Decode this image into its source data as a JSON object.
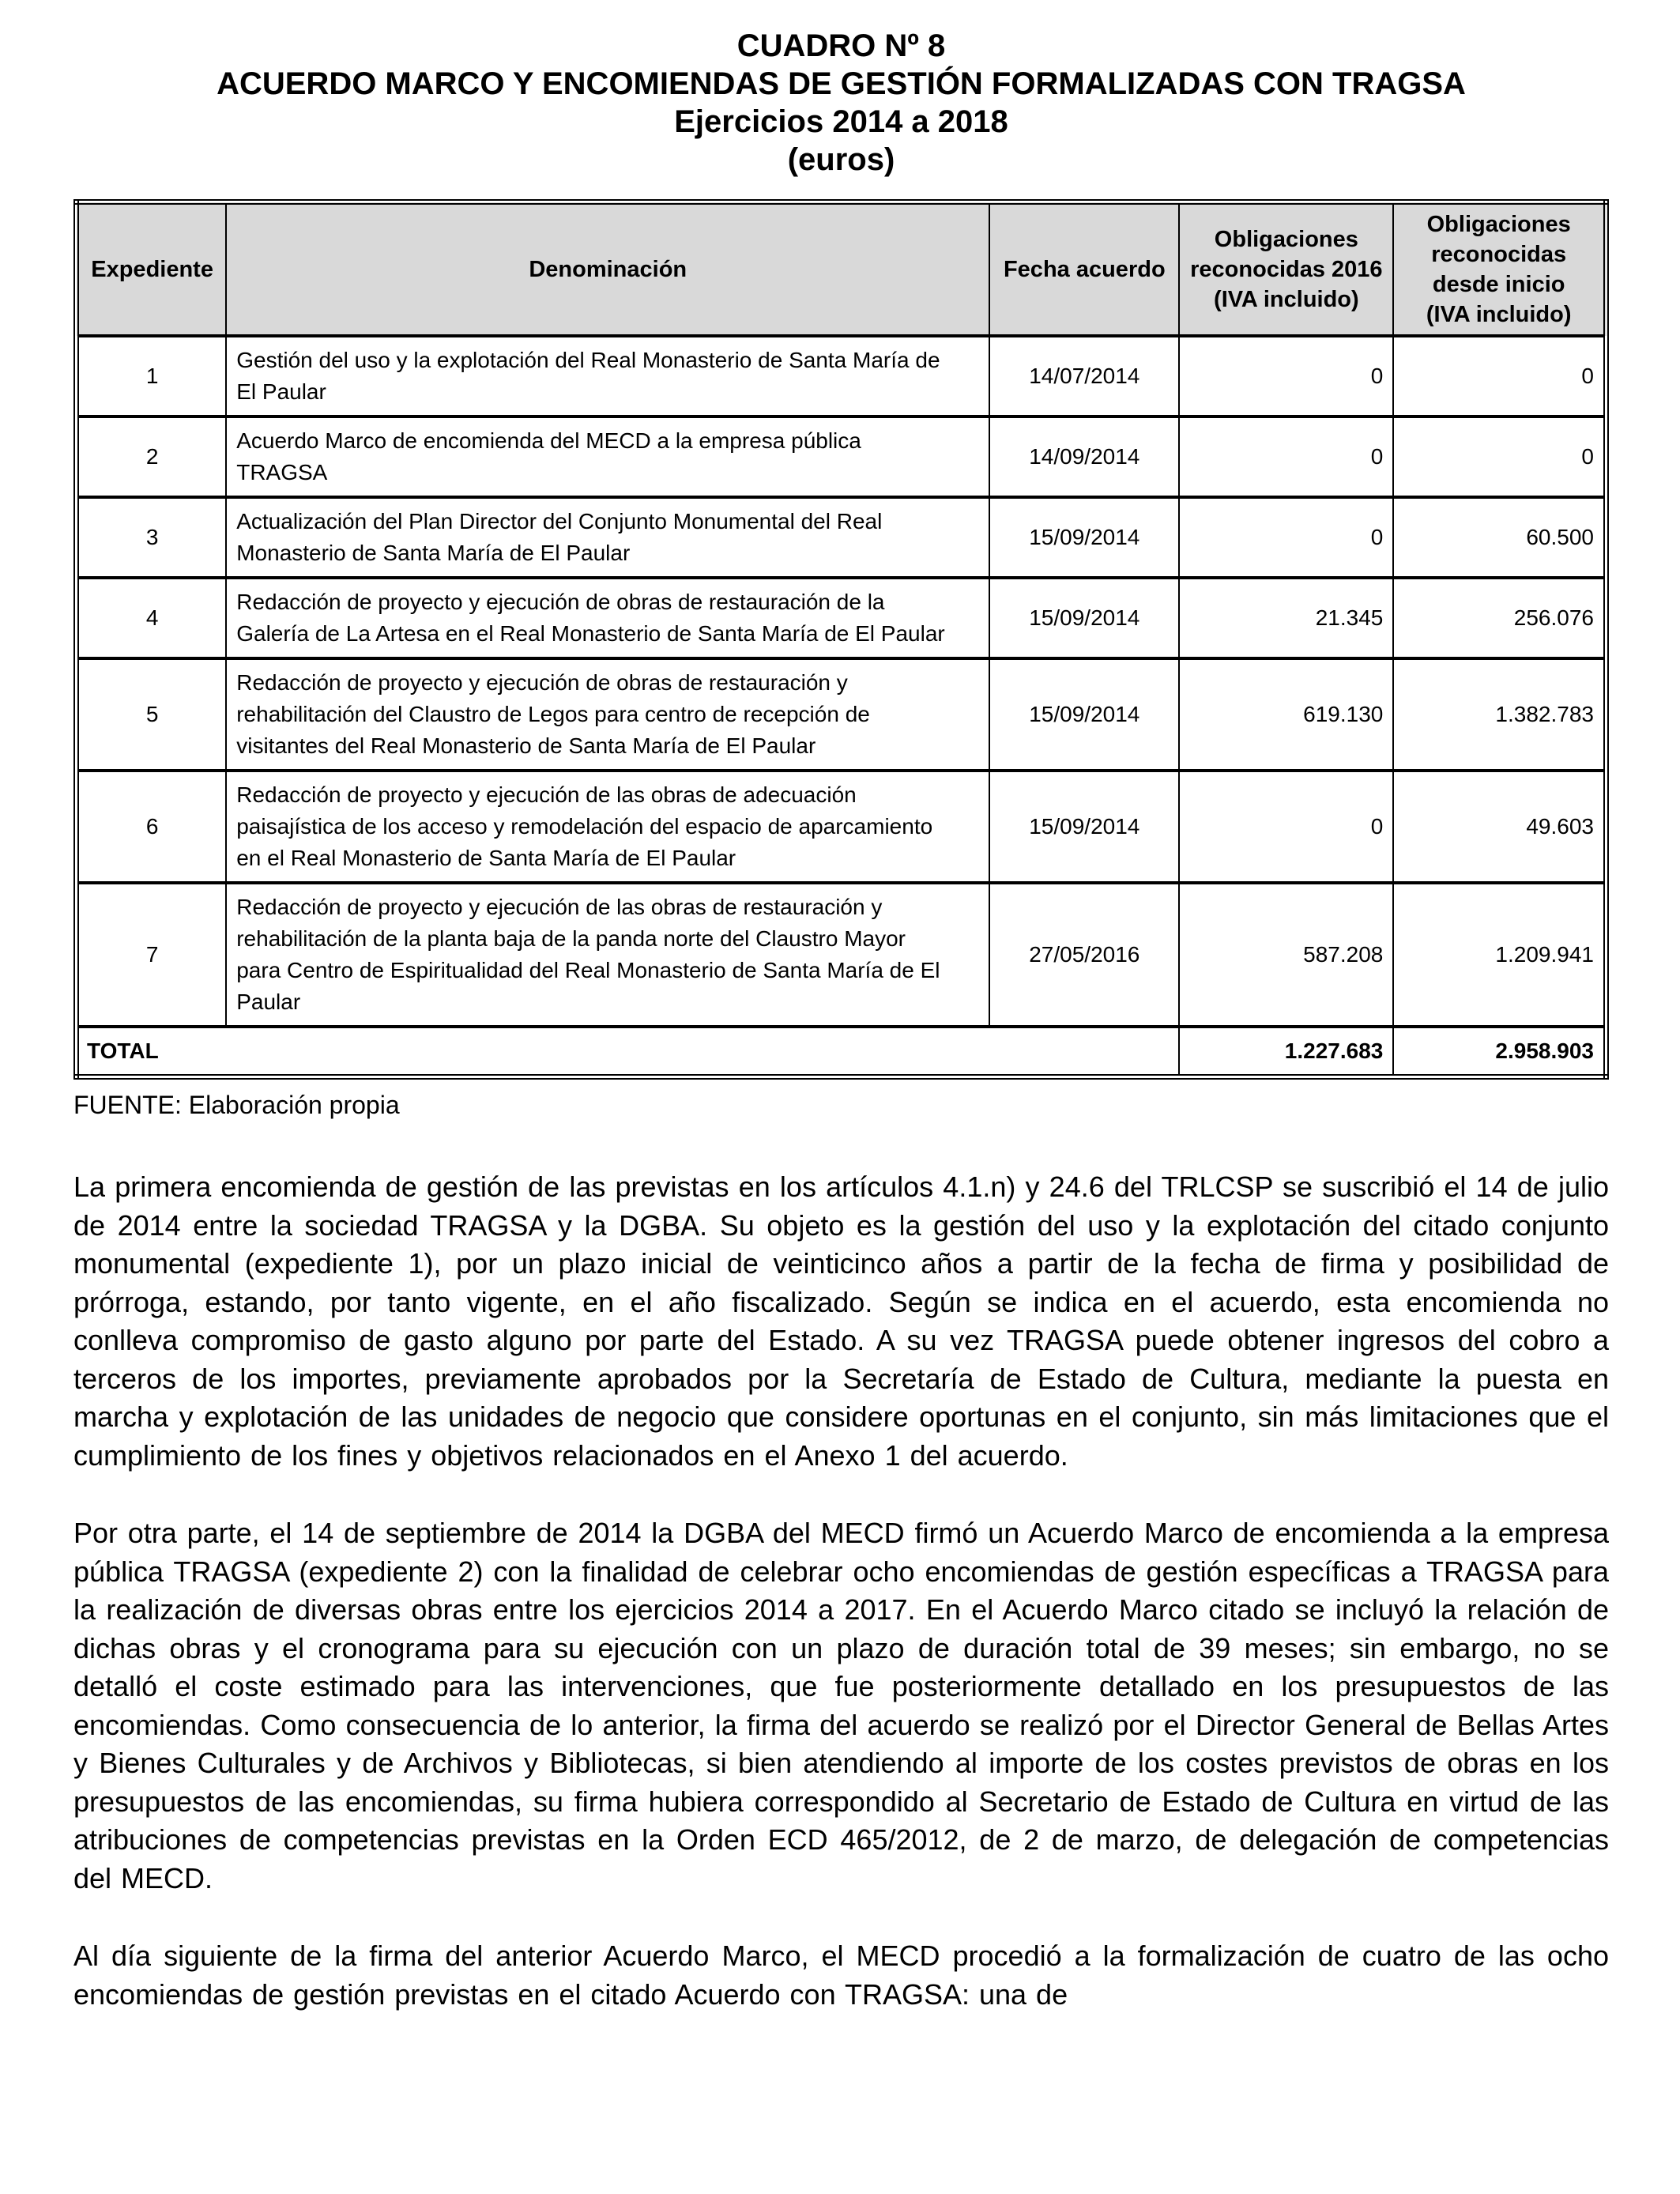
{
  "title": {
    "line1": "CUADRO Nº 8",
    "line2": "ACUERDO MARCO Y ENCOMIENDAS DE GESTIÓN FORMALIZADAS CON TRAGSA",
    "line3": "Ejercicios 2014 a 2018",
    "line4": "(euros)"
  },
  "table": {
    "headers": [
      "Expediente",
      "Denominación",
      "Fecha acuerdo",
      "Obligaciones\nreconocidas 2016\n(IVA incluido)",
      "Obligaciones\nreconocidas\ndesde inicio\n(IVA incluido)"
    ],
    "rows": [
      {
        "expediente": "1",
        "denominacion": "Gestión del uso y la explotación del Real Monasterio de Santa María de\nEl Paular",
        "fecha": "14/07/2014",
        "obl2016": "0",
        "oblInicio": "0"
      },
      {
        "expediente": "2",
        "denominacion": "Acuerdo Marco de encomienda del MECD a la empresa pública\nTRAGSA",
        "fecha": "14/09/2014",
        "obl2016": "0",
        "oblInicio": "0"
      },
      {
        "expediente": "3",
        "denominacion": "Actualización del Plan Director del Conjunto Monumental del Real\nMonasterio de Santa María de El Paular",
        "fecha": "15/09/2014",
        "obl2016": "0",
        "oblInicio": "60.500"
      },
      {
        "expediente": "4",
        "denominacion": "Redacción de proyecto y ejecución de obras de restauración de la\nGalería de La Artesa en el Real Monasterio de Santa María de El Paular",
        "fecha": "15/09/2014",
        "obl2016": "21.345",
        "oblInicio": "256.076"
      },
      {
        "expediente": "5",
        "denominacion": "Redacción de proyecto y ejecución de obras de restauración y\nrehabilitación del Claustro de Legos para centro de recepción de\nvisitantes del Real Monasterio de Santa María de El Paular",
        "fecha": "15/09/2014",
        "obl2016": "619.130",
        "oblInicio": "1.382.783"
      },
      {
        "expediente": "6",
        "denominacion": "Redacción de proyecto y ejecución de las obras de adecuación\npaisajística de los acceso y remodelación del espacio de aparcamiento\nen el Real Monasterio de Santa María de El Paular",
        "fecha": "15/09/2014",
        "obl2016": "0",
        "oblInicio": "49.603"
      },
      {
        "expediente": "7",
        "denominacion": "Redacción de proyecto y ejecución de las obras de restauración y\nrehabilitación de la planta baja de la panda norte del Claustro Mayor\npara Centro de Espiritualidad del Real Monasterio de Santa María de El\nPaular",
        "fecha": "27/05/2016",
        "obl2016": "587.208",
        "oblInicio": "1.209.941"
      }
    ],
    "total": {
      "label": "TOTAL",
      "obl2016": "1.227.683",
      "oblInicio": "2.958.903"
    }
  },
  "source": "FUENTE: Elaboración propia",
  "paragraphs": [
    "La primera encomienda de gestión de las previstas en los artículos 4.1.n) y 24.6 del TRLCSP se suscribió el 14 de julio de 2014 entre la sociedad TRAGSA y la DGBA. Su objeto es la gestión del uso y la explotación del citado conjunto monumental (expediente 1), por un plazo inicial de veinticinco años a partir de la fecha de firma y posibilidad de prórroga, estando, por tanto vigente, en el año fiscalizado. Según se indica en el acuerdo, esta encomienda no conlleva compromiso de gasto alguno por parte del Estado. A su vez TRAGSA puede obtener ingresos del cobro a terceros de los importes, previamente aprobados por la Secretaría de Estado de Cultura, mediante la puesta en marcha y explotación de las unidades de negocio que considere oportunas en el conjunto, sin más limitaciones que el cumplimiento de los fines y objetivos relacionados en el Anexo 1 del acuerdo.",
    "Por otra parte, el 14 de septiembre de 2014 la DGBA del MECD firmó un Acuerdo Marco de encomienda a la empresa pública TRAGSA (expediente 2) con la finalidad de celebrar ocho encomiendas de gestión específicas a TRAGSA para la realización de diversas obras entre los ejercicios 2014 a 2017. En el Acuerdo Marco citado se incluyó la relación de dichas obras y el cronograma para su ejecución con un plazo de duración total de 39 meses; sin embargo, no se detalló el coste estimado para las intervenciones, que fue posteriormente detallado en los presupuestos de las encomiendas. Como consecuencia de lo anterior, la firma del acuerdo se realizó por el Director General de Bellas Artes y Bienes Culturales y de Archivos y Bibliotecas, si bien atendiendo al importe de los costes previstos de obras en los presupuestos de las encomiendas, su firma hubiera correspondido al Secretario de Estado de Cultura en virtud de las atribuciones de competencias previstas en la Orden ECD 465/2012, de 2 de marzo, de delegación de competencias del MECD.",
    "Al día siguiente de la firma del anterior Acuerdo Marco, el MECD procedió a la formalización de cuatro de las ocho encomiendas de gestión previstas en el citado Acuerdo con TRAGSA: una de"
  ],
  "colors": {
    "header_bg": "#d9d9d9",
    "border": "#000000",
    "text": "#000000",
    "page_bg": "#ffffff"
  }
}
